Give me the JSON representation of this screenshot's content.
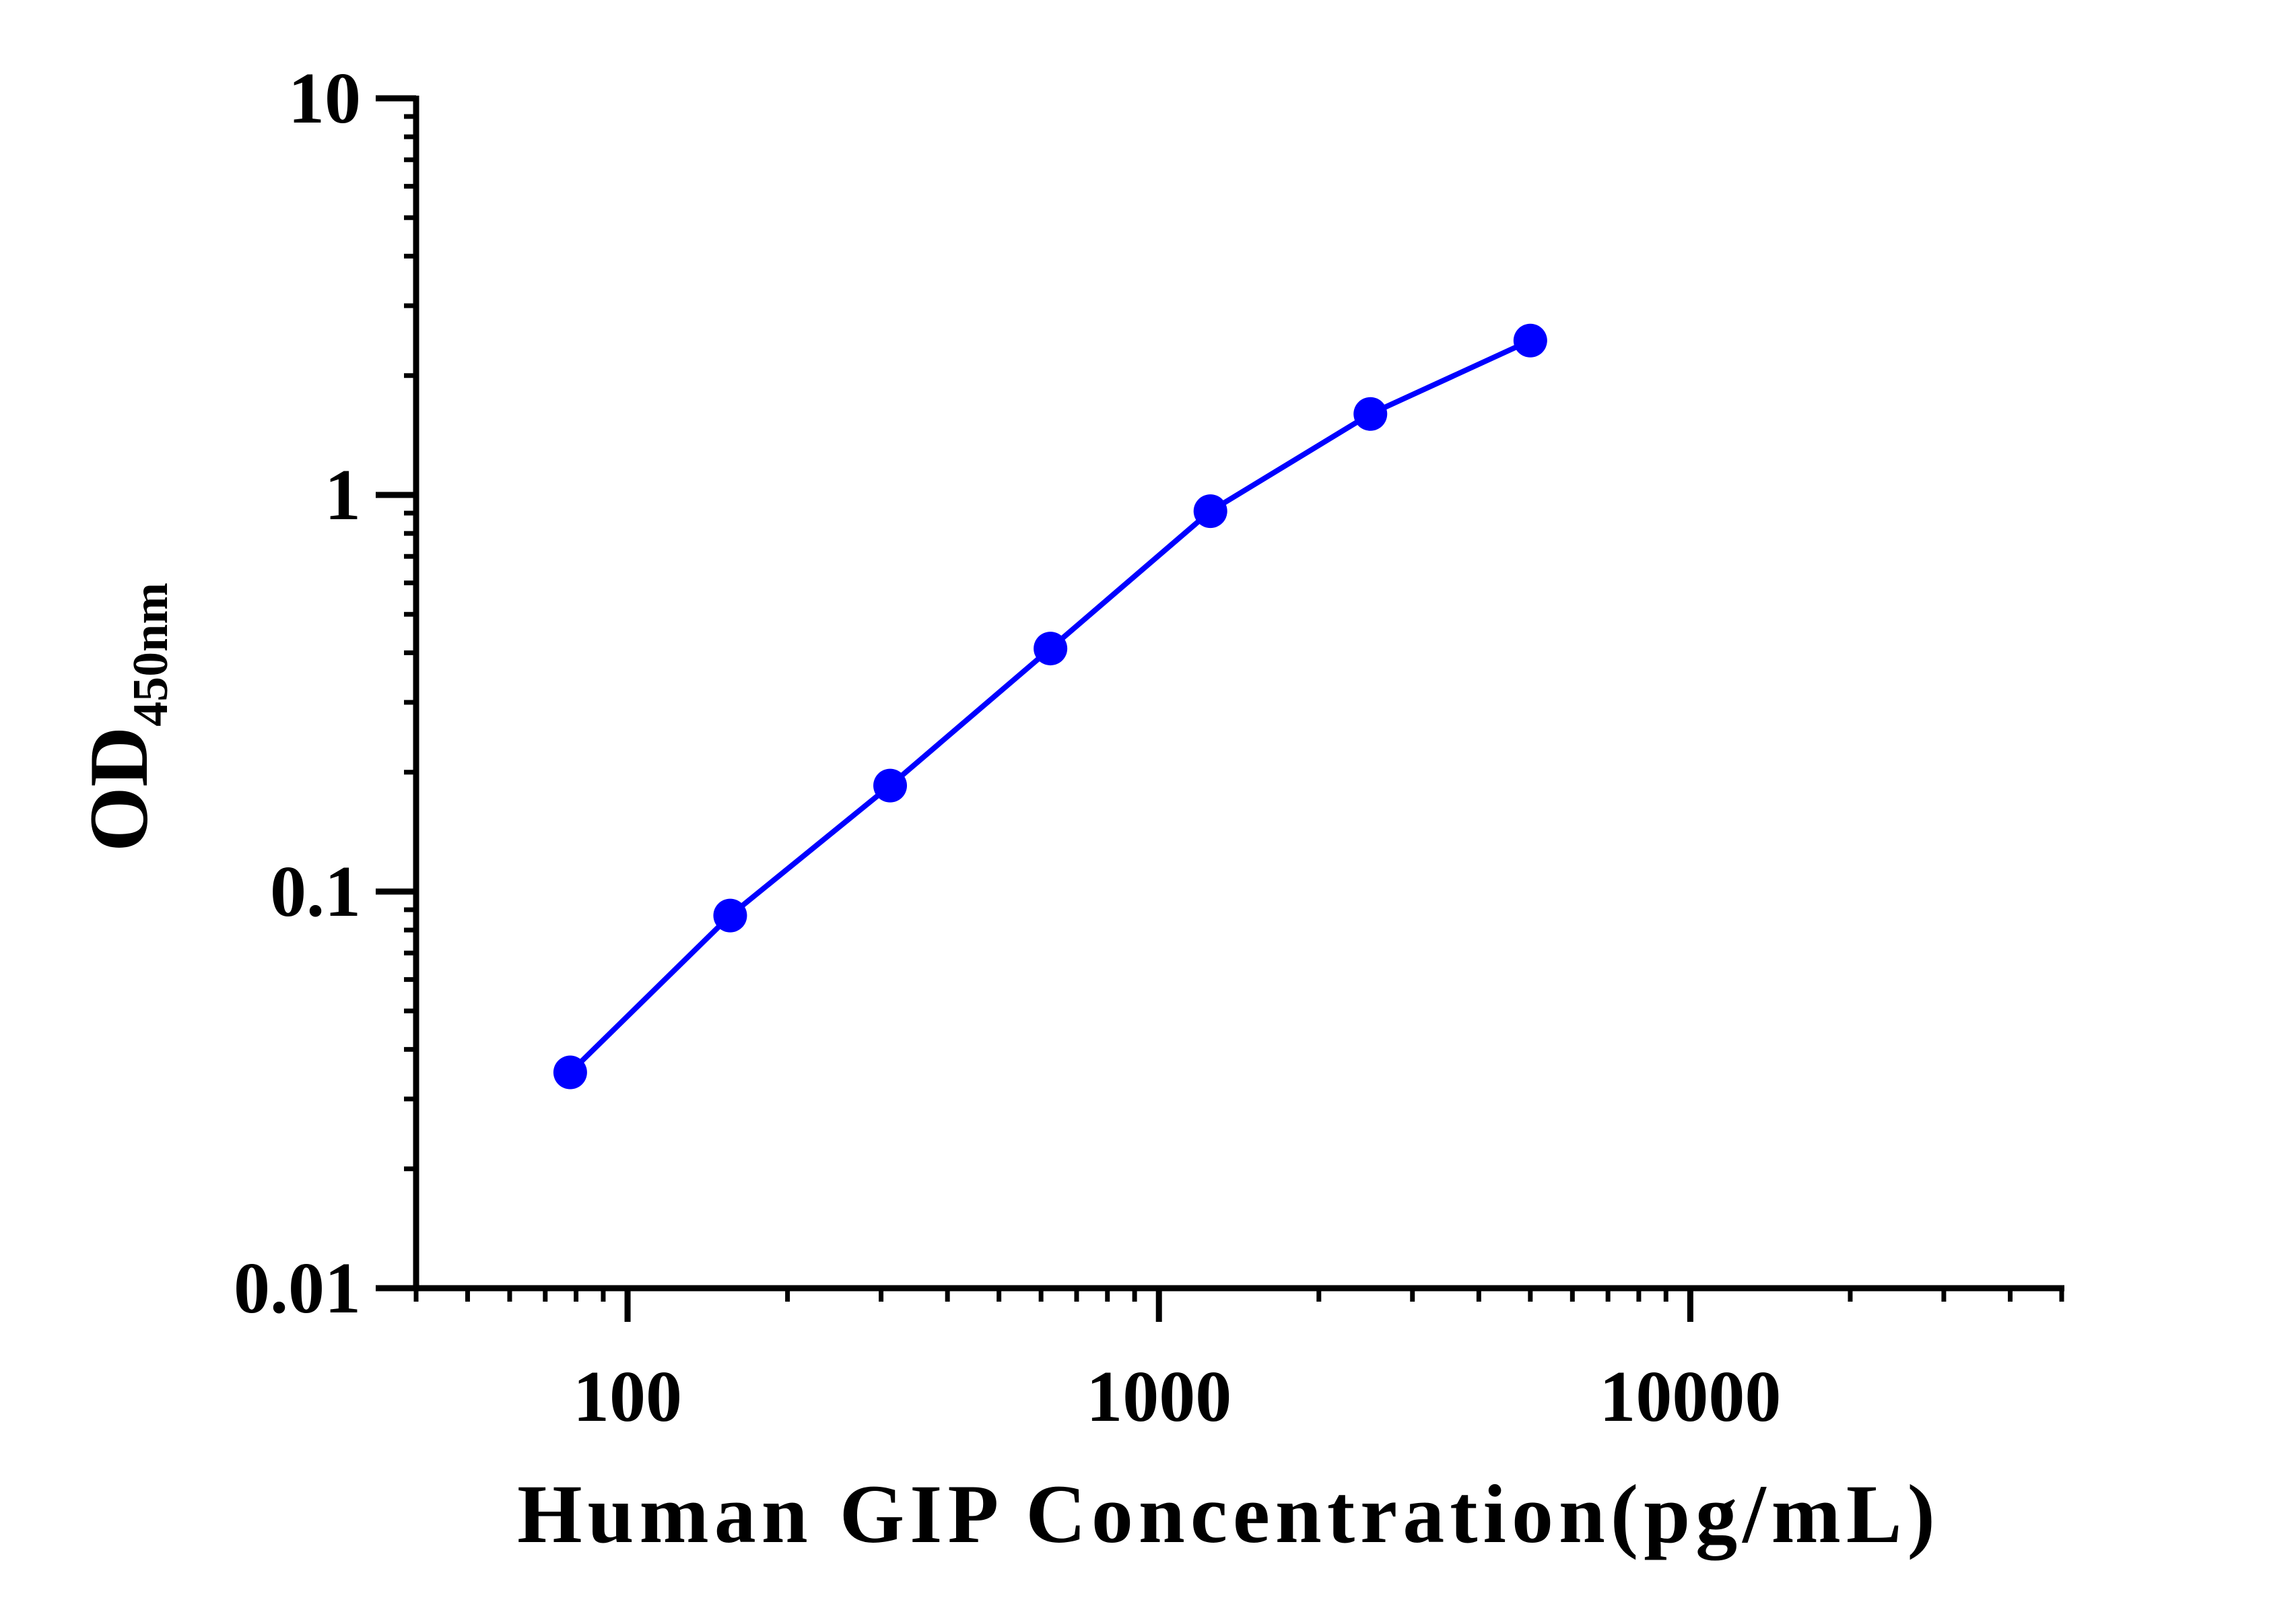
{
  "chart_data": {
    "type": "line",
    "title": "",
    "xlabel": "Human GIP Concentration(pg/mL)",
    "ylabel_main": "OD",
    "ylabel_sub": "450nm",
    "x_scale": "log",
    "y_scale": "log",
    "xlim": [
      40,
      50000
    ],
    "ylim": [
      0.01,
      10
    ],
    "x_tick_labels": [
      "100",
      "1000",
      "10000"
    ],
    "x_tick_values": [
      100,
      1000,
      10000
    ],
    "y_tick_labels": [
      "0.01",
      "0.1",
      "1",
      "10"
    ],
    "y_tick_values": [
      0.01,
      0.1,
      1,
      10
    ],
    "grid": false,
    "legend": "none",
    "series": [
      {
        "color": "#0000FF",
        "x": [
          78,
          156,
          312,
          625,
          1250,
          2500,
          5000
        ],
        "y": [
          0.035,
          0.087,
          0.185,
          0.41,
          0.91,
          1.6,
          2.45
        ]
      }
    ]
  }
}
